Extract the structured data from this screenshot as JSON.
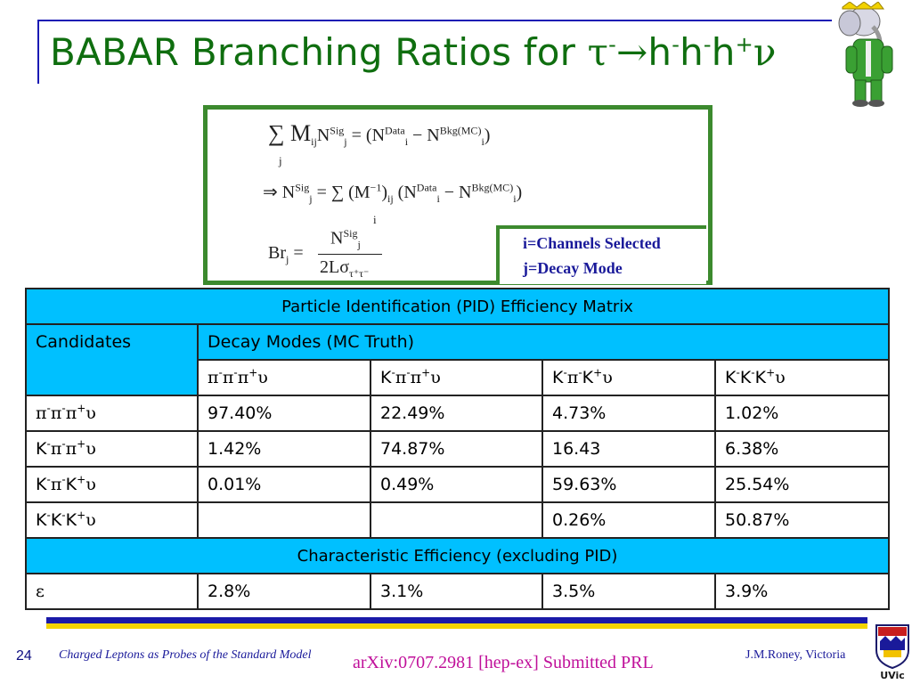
{
  "title": {
    "prefix": "BABAR Branching Ratios for ",
    "tau": "τ",
    "tau_charge": "-",
    "arrow": "→",
    "h1": "h",
    "h1_charge": "-",
    "h2": "h",
    "h2_charge": "-",
    "h3": "h",
    "h3_charge": "+",
    "nu": "ν"
  },
  "equations": {
    "eq1_left": "∑ M",
    "eq1_ij": "ij",
    "eq1_N": "N",
    "eq1_sig_sup": "Sig",
    "eq1_sig_sub": "j",
    "eq1_eq": "= (N",
    "eq1_data_sup": "Data",
    "eq1_data_sub": "i",
    "eq1_minus": "− N",
    "eq1_bkg_sup": "Bkg(MC)",
    "eq1_bkg_sub": "i",
    "eq1_close": ")",
    "eq1_sum_index": "j",
    "eq2_implies": "⇒ N",
    "eq2_sig_sup": "Sig",
    "eq2_sig_sub": "j",
    "eq2_eq": "= ∑ (M",
    "eq2_inv": "−1",
    "eq2_paren": ")",
    "eq2_ij": "ij",
    "eq2_open": "(N",
    "eq2_data_sup": "Data",
    "eq2_data_sub": "i",
    "eq2_minus": "− N",
    "eq2_bkg_sup": "Bkg(MC)",
    "eq2_bkg_sub": "i",
    "eq2_close": ")",
    "eq2_sum_index": "i",
    "eq3_br": "Br",
    "eq3_br_sub": "j",
    "eq3_eq": "=",
    "eq3_num": "N",
    "eq3_num_sup": "Sig",
    "eq3_num_sub": "j",
    "eq3_den": "2Lσ",
    "eq3_den_sub": "τ⁺τ⁻"
  },
  "legend": {
    "line1": "i=Channels Selected",
    "line2": "j=Decay Mode"
  },
  "table": {
    "title": "Particle Identification (PID) Efficiency Matrix",
    "candidates_label": "Candidates",
    "decay_modes_label": "Decay Modes (MC Truth)",
    "modes": [
      {
        "p1": "π",
        "c1": "-",
        "p2": "π",
        "c2": "-",
        "p3": "π",
        "c3": "+",
        "nu": "υ"
      },
      {
        "p1": "K",
        "c1": "-",
        "p2": "π",
        "c2": "-",
        "p3": "π",
        "c3": "+",
        "nu": "υ"
      },
      {
        "p1": "K",
        "c1": "-",
        "p2": "π",
        "c2": "-",
        "p3": "K",
        "c3": "+",
        "nu": "υ"
      },
      {
        "p1": "K",
        "c1": "-",
        "p2": "K",
        "c2": "-",
        "p3": "K",
        "c3": "+",
        "nu": "υ"
      }
    ],
    "rows": [
      {
        "values": [
          "97.40%",
          "22.49%",
          "4.73%",
          "1.02%"
        ]
      },
      {
        "values": [
          "1.42%",
          "74.87%",
          "16.43",
          "6.38%"
        ]
      },
      {
        "values": [
          "0.01%",
          "0.49%",
          "59.63%",
          "25.54%"
        ]
      },
      {
        "values": [
          "",
          "",
          "0.26%",
          "50.87%"
        ]
      }
    ],
    "char_eff_title": "Characteristic Efficiency (excluding PID)",
    "epsilon": "ε",
    "char_eff_values": [
      "2.8%",
      "3.1%",
      "3.5%",
      "3.9%"
    ]
  },
  "footer": {
    "page_number": "24",
    "left_text": "Charged Leptons as Probes of the Standard Model",
    "right_text": "J.M.Roney, Victoria",
    "arxiv": "arXiv:0707.2981 [hep-ex] Submitted PRL",
    "logo_text": "UVic"
  },
  "colors": {
    "title_green": "#0f6e0f",
    "box_green": "#3c8a2e",
    "table_blue": "#00c0ff",
    "footer_blue": "#1a1a9a",
    "arxiv_magenta": "#c0109a"
  }
}
